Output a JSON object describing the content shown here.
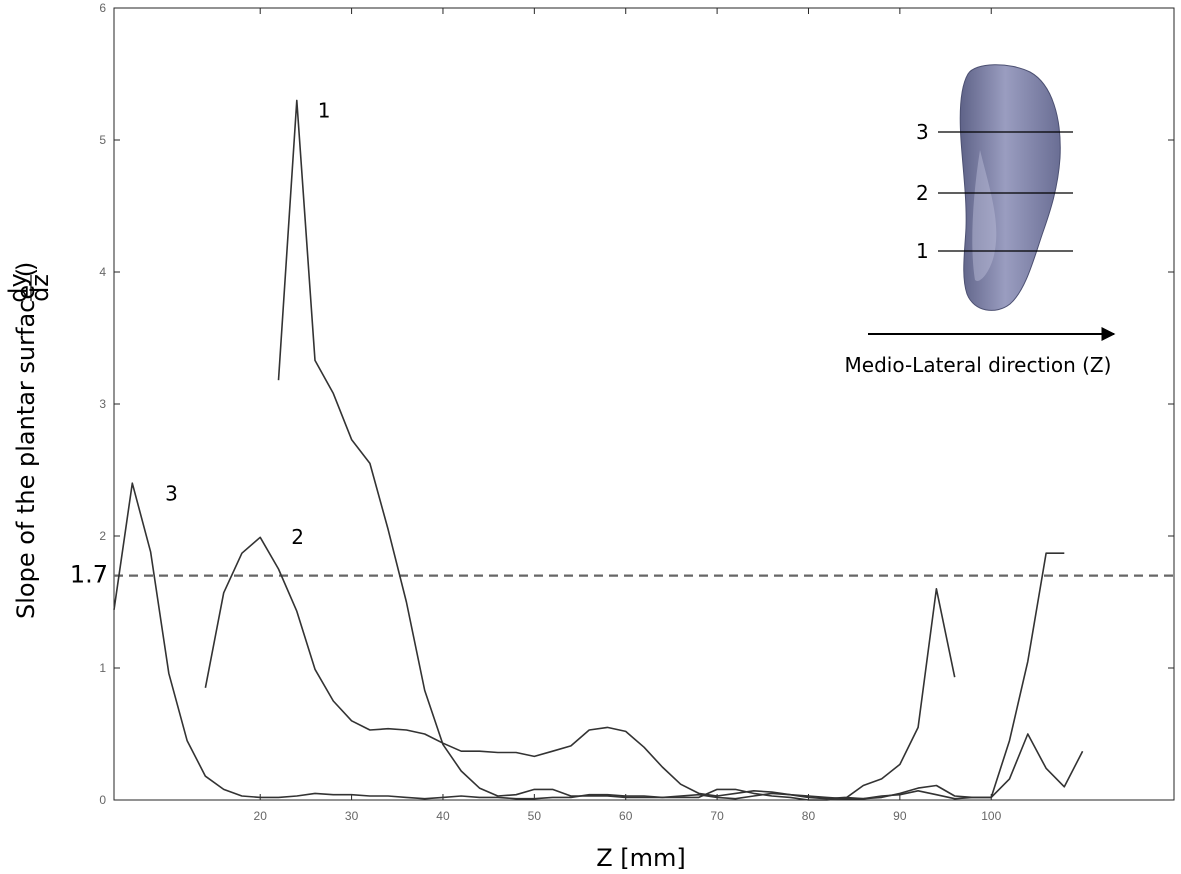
{
  "chart_data": {
    "type": "line",
    "xlabel": "Z [mm]",
    "ylabel": {
      "main": "Slope of the plantar surface (",
      "frac_num": "dy",
      "frac_den": "dz",
      "close": ")"
    },
    "xlim": [
      4,
      120
    ],
    "ylim": [
      0,
      6
    ],
    "x_ticks": [
      20,
      30,
      40,
      50,
      60,
      70,
      80,
      90,
      100
    ],
    "y_ticks": [
      0,
      1,
      2,
      3,
      4,
      5,
      6
    ],
    "grid": false,
    "threshold": {
      "value": 1.7,
      "label": "1.7",
      "color": "#666666",
      "style": "dashed"
    },
    "series": [
      {
        "name": "1",
        "color": "#333333",
        "x": [
          22,
          24,
          26,
          28,
          30,
          32,
          34,
          36,
          38,
          40,
          42,
          44,
          46,
          48,
          50,
          52,
          54,
          56,
          58,
          60,
          62,
          64,
          66,
          68,
          70,
          72,
          74,
          76,
          78,
          80,
          82,
          84,
          86,
          88,
          90,
          92,
          94,
          96
        ],
        "y": [
          3.18,
          5.3,
          3.33,
          3.08,
          2.73,
          2.55,
          2.05,
          1.5,
          0.83,
          0.42,
          0.22,
          0.09,
          0.03,
          0.04,
          0.08,
          0.08,
          0.03,
          0.03,
          0.03,
          0.02,
          0.02,
          0.02,
          0.02,
          0.02,
          0.08,
          0.08,
          0.05,
          0.03,
          0.02,
          0.0,
          0.0,
          0.01,
          0.11,
          0.16,
          0.27,
          0.55,
          1.6,
          0.93
        ]
      },
      {
        "name": "2",
        "color": "#333333",
        "x": [
          14,
          16,
          18,
          20,
          22,
          24,
          26,
          28,
          30,
          32,
          34,
          36,
          38,
          40,
          42,
          44,
          46,
          48,
          50,
          52,
          54,
          56,
          58,
          60,
          62,
          64,
          66,
          68,
          70,
          72,
          74,
          76,
          78,
          80,
          82,
          84,
          86,
          88,
          90,
          92,
          94,
          96,
          98,
          100,
          102,
          104,
          106,
          108
        ],
        "y": [
          0.85,
          1.57,
          1.87,
          1.99,
          1.75,
          1.43,
          0.99,
          0.75,
          0.6,
          0.53,
          0.54,
          0.53,
          0.5,
          0.43,
          0.37,
          0.37,
          0.36,
          0.36,
          0.33,
          0.37,
          0.41,
          0.53,
          0.55,
          0.52,
          0.4,
          0.25,
          0.12,
          0.05,
          0.03,
          0.05,
          0.07,
          0.06,
          0.04,
          0.02,
          0.01,
          0.02,
          0.01,
          0.02,
          0.05,
          0.09,
          0.11,
          0.03,
          0.02,
          0.02,
          0.45,
          1.05,
          1.87,
          1.87
        ]
      },
      {
        "name": "3",
        "color": "#333333",
        "x": [
          4,
          6,
          8,
          10,
          12,
          14,
          16,
          18,
          20,
          22,
          24,
          26,
          28,
          30,
          32,
          34,
          36,
          38,
          40,
          42,
          44,
          46,
          48,
          50,
          52,
          54,
          56,
          58,
          60,
          62,
          64,
          66,
          68,
          70,
          72,
          74,
          76,
          78,
          80,
          82,
          84,
          86,
          88,
          90,
          92,
          94,
          96,
          98,
          100,
          102,
          104,
          106,
          108,
          110
        ],
        "y": [
          1.44,
          2.4,
          1.88,
          0.96,
          0.45,
          0.18,
          0.08,
          0.03,
          0.02,
          0.02,
          0.03,
          0.05,
          0.04,
          0.04,
          0.03,
          0.03,
          0.02,
          0.01,
          0.02,
          0.03,
          0.02,
          0.02,
          0.01,
          0.01,
          0.02,
          0.02,
          0.04,
          0.04,
          0.03,
          0.03,
          0.02,
          0.03,
          0.04,
          0.02,
          0.01,
          0.03,
          0.05,
          0.04,
          0.03,
          0.02,
          0.01,
          0.01,
          0.03,
          0.04,
          0.07,
          0.04,
          0.01,
          0.02,
          0.02,
          0.16,
          0.5,
          0.24,
          0.1,
          0.37
        ]
      }
    ],
    "series_labels": [
      {
        "text": "1",
        "x": 26.3,
        "y": 5.17
      },
      {
        "text": "2",
        "x": 23.4,
        "y": 1.94
      },
      {
        "text": "3",
        "x": 9.6,
        "y": 2.27
      }
    ],
    "inset": {
      "marker_labels": [
        "3",
        "2",
        "1"
      ],
      "direction_label": "Medio-Lateral direction (Z)",
      "foot_color": "#7478a0"
    }
  }
}
